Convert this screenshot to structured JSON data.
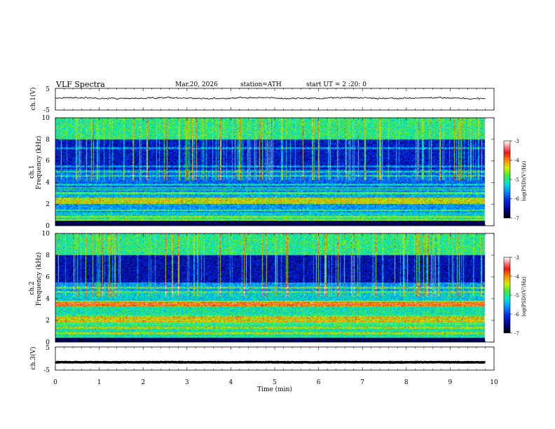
{
  "header": {
    "title": "VLF  Spectra",
    "date": "Mar.20, 2026",
    "station": "station=ATH",
    "start_ut": "start  UT  =   2 :20: 0"
  },
  "chart_data": [
    {
      "type": "line",
      "panel": "ch1-waveform",
      "ylabel": "ch.1(V)",
      "ylim": [
        -5,
        5
      ],
      "yticks": [
        "5",
        "-5"
      ],
      "xlim": [
        0,
        10
      ],
      "data_end_min": 9.8,
      "series": [
        {
          "name": "ch.1",
          "mean": 0.5,
          "noise_amplitude": 0.6
        }
      ]
    },
    {
      "type": "heatmap",
      "panel": "ch1-spectrogram",
      "ylabel": "ch.1",
      "ylabel2": "Frequency  (kHz)",
      "ylim": [
        0,
        10
      ],
      "yticks": [
        "0",
        "2",
        "4",
        "6",
        "8",
        "10"
      ],
      "xlim": [
        0,
        10
      ],
      "data_end_min": 9.8,
      "colorbar": {
        "label": "log(PSD)(V²/Hz)",
        "range": [
          -7,
          -3
        ],
        "ticks": [
          "-3",
          "-4",
          "-5",
          "-6",
          "-7"
        ]
      },
      "bands_khz": [
        {
          "from": 0,
          "to": 0.4,
          "level": -7
        },
        {
          "from": 0.4,
          "to": 1.2,
          "level": -5.3
        },
        {
          "from": 1.2,
          "to": 2.0,
          "level": -5.6
        },
        {
          "from": 2.0,
          "to": 2.6,
          "level": -5.0
        },
        {
          "from": 2.6,
          "to": 3.2,
          "level": -5.5
        },
        {
          "from": 3.2,
          "to": 4.0,
          "level": -5.9
        },
        {
          "from": 4.0,
          "to": 5.2,
          "level": -5.8
        },
        {
          "from": 5.2,
          "to": 8.0,
          "level": -6.3
        },
        {
          "from": 8.0,
          "to": 10.0,
          "level": -5.0
        }
      ],
      "lines_khz": [
        0.5,
        0.8,
        1.4,
        2.1,
        2.3,
        2.5,
        3.0,
        3.3,
        3.5,
        3.8,
        4.6,
        5.0,
        5.5,
        7.2
      ]
    },
    {
      "type": "heatmap",
      "panel": "ch2-spectrogram",
      "ylabel": "ch.2",
      "ylabel2": "Frequency  (kHz)",
      "ylim": [
        0,
        10
      ],
      "yticks": [
        "0",
        "2",
        "4",
        "6",
        "8",
        "10"
      ],
      "xlim": [
        0,
        10
      ],
      "data_end_min": 9.8,
      "colorbar": {
        "label": "log(PSD)(V²/Hz)",
        "range": [
          -7,
          -3
        ],
        "ticks": [
          "-3",
          "-4",
          "-5",
          "-6",
          "-7"
        ]
      },
      "bands_khz": [
        {
          "from": 0,
          "to": 0.3,
          "level": -7
        },
        {
          "from": 0.3,
          "to": 1.5,
          "level": -5.1
        },
        {
          "from": 1.5,
          "to": 2.5,
          "level": -4.9
        },
        {
          "from": 2.5,
          "to": 3.3,
          "level": -5.1
        },
        {
          "from": 3.3,
          "to": 3.8,
          "level": -4.4
        },
        {
          "from": 3.8,
          "to": 4.5,
          "level": -5.3
        },
        {
          "from": 4.5,
          "to": 5.5,
          "level": -5.6
        },
        {
          "from": 5.5,
          "to": 8.0,
          "level": -6.4
        },
        {
          "from": 8.0,
          "to": 10.0,
          "level": -5.0
        }
      ],
      "lines_khz": [
        0.8,
        1.3,
        1.9,
        2.1,
        2.3,
        3.4,
        3.6,
        4.6,
        5.0
      ]
    },
    {
      "type": "line",
      "panel": "ch3-waveform",
      "ylabel": "ch.3(V)",
      "xlabel": "Time  (min)",
      "ylim": [
        -5,
        5
      ],
      "yticks": [
        "5",
        "-5"
      ],
      "xlim": [
        0,
        10
      ],
      "xticks": [
        "0",
        "1",
        "2",
        "3",
        "4",
        "5",
        "6",
        "7",
        "8",
        "9",
        "10"
      ],
      "data_end_min": 9.8,
      "series": [
        {
          "name": "ch.3",
          "mean": -1.6,
          "noise_amplitude": 0.1
        }
      ]
    }
  ]
}
